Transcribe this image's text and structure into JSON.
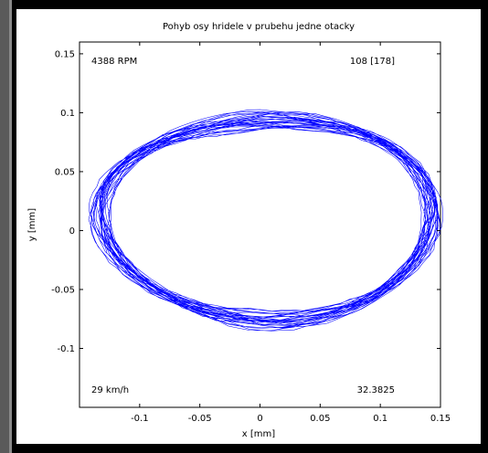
{
  "chart_data": {
    "type": "line",
    "title": "Pohyb osy hridele v prubehu jedne otacky",
    "xlabel": "x [mm]",
    "ylabel": "y [mm]",
    "xlim": [
      -0.15,
      0.15
    ],
    "ylim": [
      -0.15,
      0.16
    ],
    "x_ticks": [
      -0.1,
      -0.05,
      0,
      0.05,
      0.1,
      0.15
    ],
    "x_tick_labels": [
      "-0.1",
      "-0.05",
      "0",
      "0.05",
      "0.1",
      "0.15"
    ],
    "y_ticks": [
      -0.1,
      -0.05,
      0,
      0.05,
      0.1,
      0.15
    ],
    "y_tick_labels": [
      "-0.1",
      "-0.05",
      "0",
      "0.05",
      "0.1",
      "0.15"
    ],
    "grid": false,
    "series": [
      {
        "orbit": {
          "center_x": 0.005,
          "center_y": 0.012,
          "semi_axis_x": 0.138,
          "semi_axis_y": 0.085
        },
        "revolutions": 28,
        "color": "#0000ff"
      }
    ],
    "annotations": {
      "top_left": "4388 RPM",
      "top_right": "108 [178]",
      "bottom_left": "29 km/h",
      "bottom_right": "32.3825"
    }
  },
  "colors": {
    "background": "#000000",
    "panel": "#ffffff",
    "series": "#0000ff",
    "frame": "#5a5a5a"
  }
}
